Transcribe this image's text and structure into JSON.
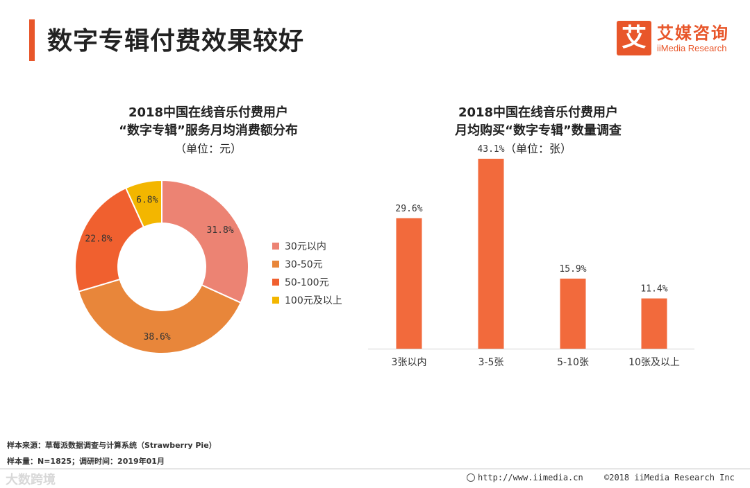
{
  "page": {
    "title": "数字专辑付费效果较好",
    "logo_cn": "艾媒咨询",
    "logo_en": "iiMedia Research",
    "logo_mark": "艾"
  },
  "colors": {
    "accent": "#e8562a",
    "slice1": "#ec8373",
    "slice2": "#e8863a",
    "slice3": "#f0602f",
    "slice4": "#f3b600",
    "bar": "#f26a3c"
  },
  "chart_data": [
    {
      "type": "pie",
      "title_line1": "2018中国在线音乐付费用户",
      "title_line2": "“数字专辑”服务月均消费额分布",
      "unit": "（单位：元）",
      "categories": [
        "30元以内",
        "30-50元",
        "50-100元",
        "100元及以上"
      ],
      "values": [
        31.8,
        38.6,
        22.8,
        6.8
      ],
      "labels": [
        "31.8%",
        "38.6%",
        "22.8%",
        "6.8%"
      ],
      "legend": "right"
    },
    {
      "type": "bar",
      "title_line1": "2018中国在线音乐付费用户",
      "title_line2": "月均购买“数字专辑”数量调查",
      "unit": "（单位：张）",
      "categories": [
        "3张以内",
        "3-5张",
        "5-10张",
        "10张及以上"
      ],
      "values": [
        29.6,
        43.1,
        15.9,
        11.4
      ],
      "labels": [
        "29.6%",
        "43.1%",
        "15.9%",
        "11.4%"
      ],
      "ylim": [
        0,
        43.1
      ]
    }
  ],
  "footer": {
    "source": "样本来源：草莓派数据调查与计算系统（Strawberry Pie）",
    "sample": "样本量：N=1825；调研时间：2019年01月",
    "url": "http://www.iimedia.cn",
    "copyright": "©2018  iiMedia Research  Inc",
    "watermark": "大数跨境"
  }
}
